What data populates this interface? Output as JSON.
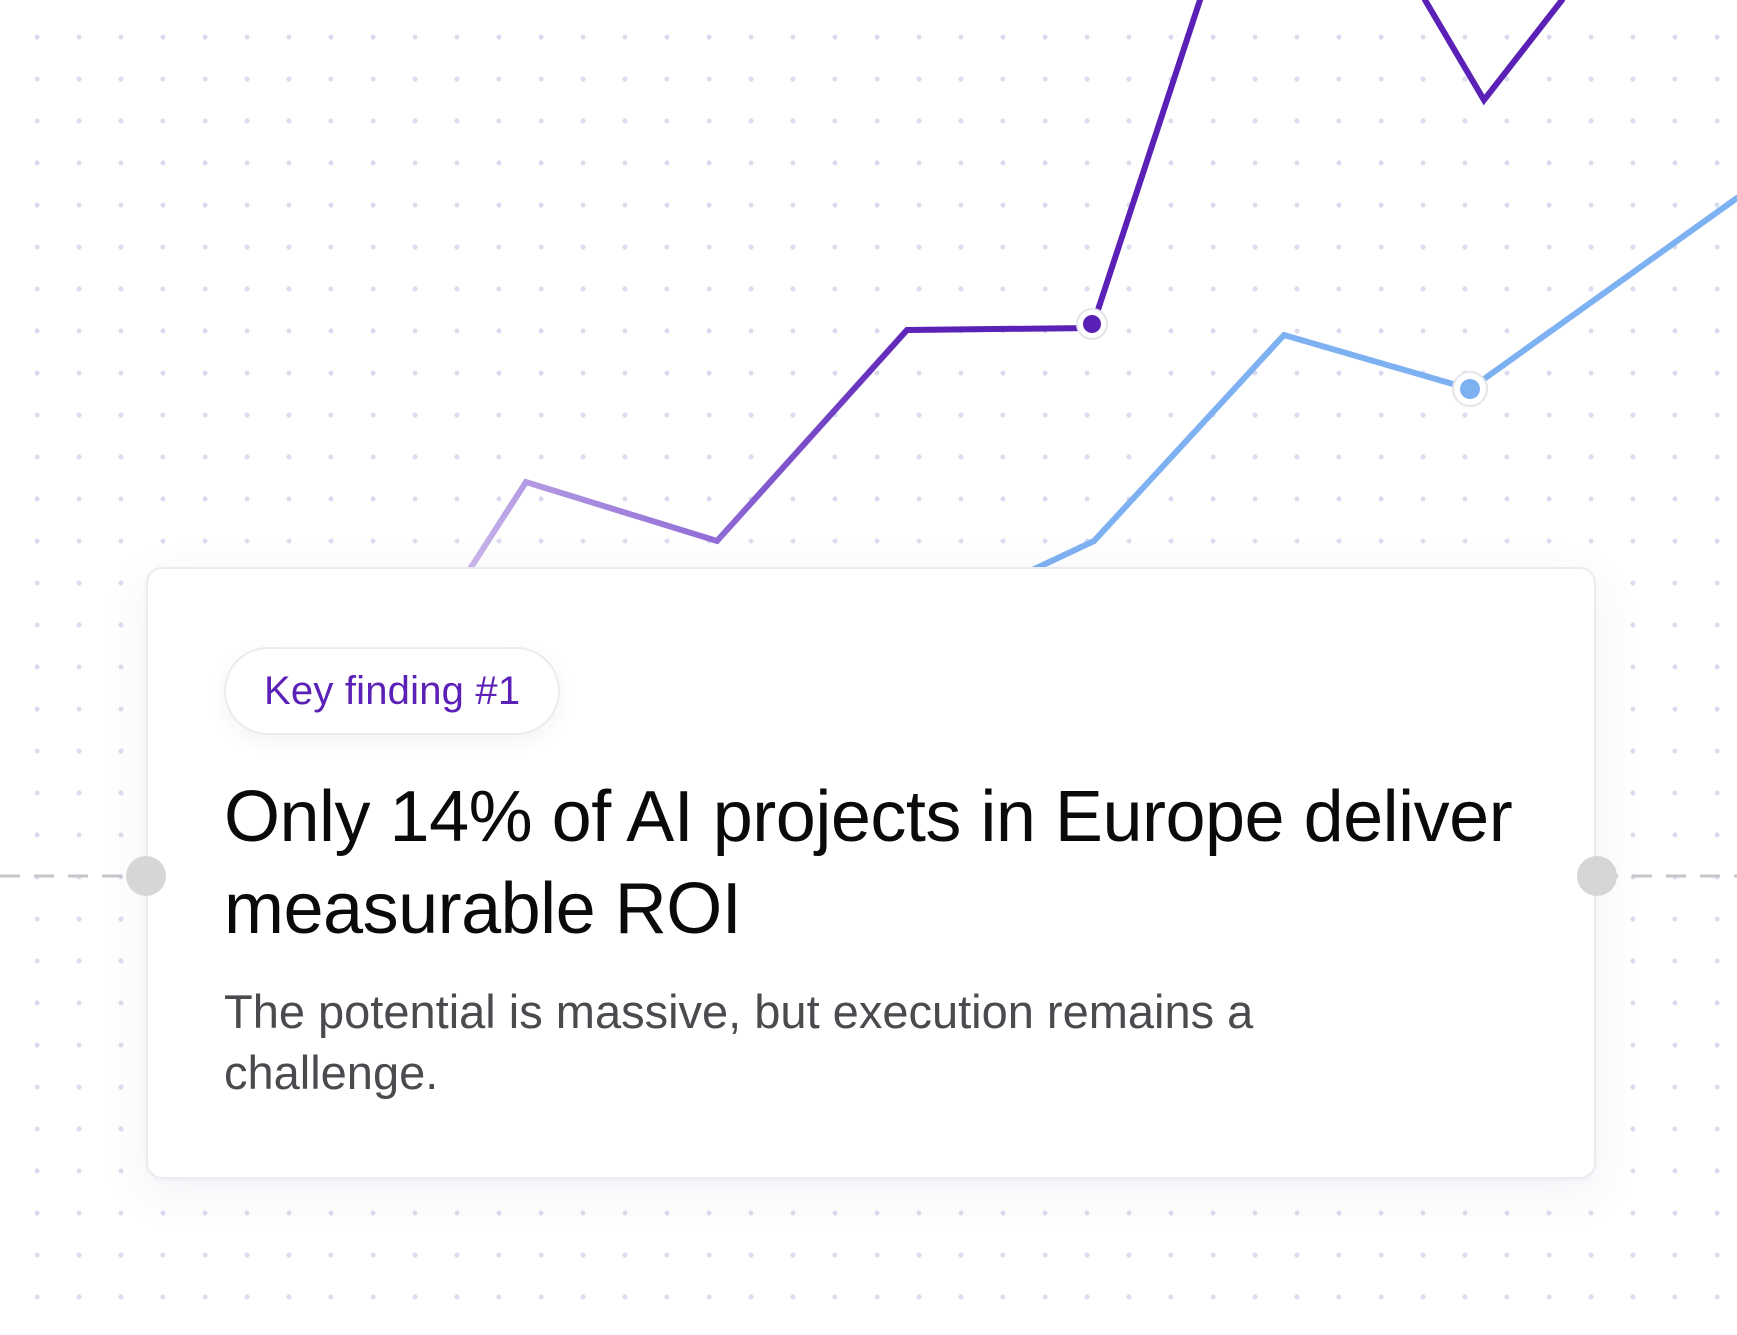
{
  "background": {
    "dot_color": "#dcdcf0",
    "connector_color": "#c6c6ca",
    "primary_line_color": "#5b21b6",
    "primary_line_fade_color": "#c9b6ea",
    "secondary_line_color": "#7eb1f2"
  },
  "card": {
    "badge_label": "Key finding #1",
    "headline": "Only 14% of AI projects in Europe deliver measurable ROI",
    "subtext": "The potential is massive, but execution remains a challenge."
  },
  "colors": {
    "badge_text": "#5b21b6",
    "headline_text": "#0a0a0a",
    "subtext": "#4a4a4f"
  }
}
